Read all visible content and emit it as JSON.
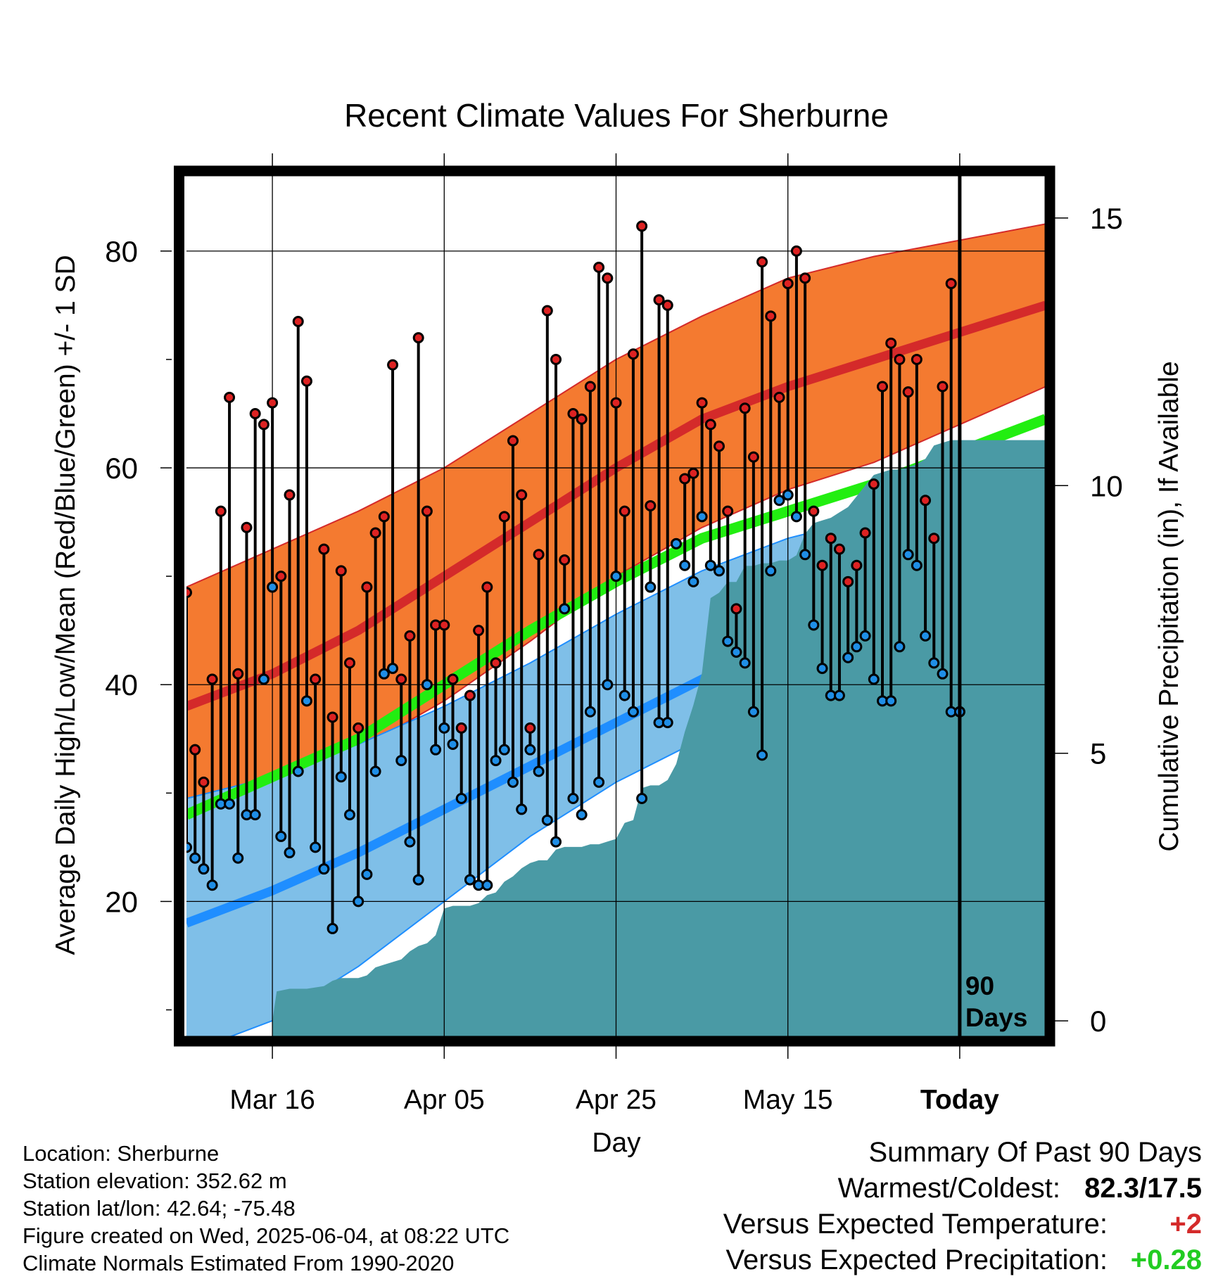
{
  "chart_data": {
    "type": "line",
    "title": "Recent Climate Values For Sherburne",
    "xlabel": "Day",
    "ylabel": "Average Daily High/Low/Mean (Red/Blue/Green) +/- 1 SD",
    "y2label": "Cumulative Precipitation (in), If Available",
    "xlim": [
      -10,
      90
    ],
    "ylim": [
      7.5,
      87
    ],
    "y2lim": [
      -0.3,
      15.8
    ],
    "grid": true,
    "x_ticks": [
      {
        "x": 0,
        "label": "Mar 16"
      },
      {
        "x": 20,
        "label": "Apr 05"
      },
      {
        "x": 40,
        "label": "Apr 25"
      },
      {
        "x": 60,
        "label": "May 15"
      },
      {
        "x": 80,
        "label": "Today"
      }
    ],
    "y_ticks": [
      20,
      40,
      60,
      80
    ],
    "y2_ticks": [
      0,
      5,
      10,
      15
    ],
    "today_marker": {
      "x": 80,
      "label_line1": "90",
      "label_line2": "Days"
    },
    "normals": {
      "x": [
        -10,
        0,
        10,
        20,
        30,
        40,
        50,
        60,
        70,
        80,
        90
      ],
      "high_mean": [
        38,
        41,
        45,
        50,
        55,
        60,
        64.5,
        67.5,
        70,
        72.5,
        75
      ],
      "high_upper": [
        49,
        52.5,
        56,
        60,
        65,
        70,
        74,
        77.5,
        79.5,
        81,
        82.5
      ],
      "high_lower": [
        29.5,
        31,
        34,
        38.5,
        44,
        50,
        54.5,
        58,
        60.5,
        64,
        67.5
      ],
      "mean": [
        28,
        31.5,
        35,
        40,
        45,
        49.5,
        53.5,
        56,
        58.5,
        61.5,
        64.5
      ],
      "low_mean": [
        18,
        21,
        24.5,
        28.5,
        32.5,
        36.5,
        40.5,
        44,
        47,
        50,
        53.5
      ],
      "low_upper": [
        29.5,
        31.5,
        34.5,
        38,
        42,
        46.5,
        50.5,
        53.5,
        55.5,
        58,
        60
      ],
      "low_lower": [
        6,
        9,
        14,
        20,
        26,
        31,
        35,
        37.5,
        40.5,
        44,
        47
      ]
    },
    "colors": {
      "high_band": "#f47a30",
      "high_line": "#d42a2a",
      "mean_line": "#22ee11",
      "low_band": "#7fbfe8",
      "low_line": "#1f8eff",
      "precip": "#4a9aa5",
      "high_point": "#dd2222",
      "low_point": "#1f8ee6"
    },
    "series": [
      {
        "name": "Daily High",
        "x": [
          -10,
          -9,
          -8,
          -7,
          -6,
          -5,
          -4,
          -3,
          -2,
          -1,
          0,
          1,
          2,
          3,
          4,
          5,
          6,
          7,
          8,
          9,
          10,
          11,
          12,
          13,
          14,
          15,
          16,
          17,
          18,
          19,
          20,
          21,
          22,
          23,
          24,
          25,
          26,
          27,
          28,
          29,
          30,
          31,
          32,
          33,
          34,
          35,
          36,
          37,
          38,
          39,
          40,
          41,
          42,
          43,
          44,
          45,
          46,
          47,
          48,
          49,
          50,
          51,
          52,
          53,
          54,
          55,
          56,
          57,
          58,
          59,
          60,
          61,
          62,
          63,
          64,
          65,
          66,
          67,
          68,
          69,
          70,
          71,
          72,
          73,
          74,
          75,
          76,
          77,
          78,
          79,
          80
        ],
        "values": [
          48.5,
          34,
          31,
          40.5,
          56,
          66.5,
          41,
          54.5,
          65,
          64,
          66,
          50,
          57.5,
          73.5,
          68,
          40.5,
          52.5,
          37,
          50.5,
          42,
          36,
          49,
          54,
          55.5,
          69.5,
          40.5,
          44.5,
          72,
          56,
          45.5,
          45.5,
          40.5,
          36,
          39,
          45,
          49,
          42,
          55.5,
          62.5,
          57.5,
          36,
          52,
          74.5,
          70,
          51.5,
          65,
          64.5,
          67.5,
          78.5,
          77.5,
          66,
          56,
          70.5,
          82.3,
          56.5,
          75.5,
          75,
          53,
          59,
          59.5,
          66,
          64,
          62,
          56,
          47,
          65.5,
          61,
          79,
          74,
          66.5,
          77,
          80,
          77.5,
          56,
          51,
          53.5,
          52.5,
          49.5,
          51,
          54,
          58.5,
          67.5,
          71.5,
          70,
          67,
          70,
          57,
          53.5,
          67.5,
          77,
          37.5
        ]
      },
      {
        "name": "Daily Low",
        "x": [
          -10,
          -9,
          -8,
          -7,
          -6,
          -5,
          -4,
          -3,
          -2,
          -1,
          0,
          1,
          2,
          3,
          4,
          5,
          6,
          7,
          8,
          9,
          10,
          11,
          12,
          13,
          14,
          15,
          16,
          17,
          18,
          19,
          20,
          21,
          22,
          23,
          24,
          25,
          26,
          27,
          28,
          29,
          30,
          31,
          32,
          33,
          34,
          35,
          36,
          37,
          38,
          39,
          40,
          41,
          42,
          43,
          44,
          45,
          46,
          47,
          48,
          49,
          50,
          51,
          52,
          53,
          54,
          55,
          56,
          57,
          58,
          59,
          60,
          61,
          62,
          63,
          64,
          65,
          66,
          67,
          68,
          69,
          70,
          71,
          72,
          73,
          74,
          75,
          76,
          77,
          78,
          79,
          80
        ],
        "values": [
          25,
          24,
          23,
          21.5,
          29,
          29,
          24,
          28,
          28,
          40.5,
          49,
          26,
          24.5,
          32,
          38.5,
          25,
          23,
          17.5,
          31.5,
          28,
          20,
          22.5,
          32,
          41,
          41.5,
          33,
          25.5,
          22,
          40,
          34,
          36,
          34.5,
          29.5,
          22,
          21.5,
          21.5,
          33,
          34,
          31,
          28.5,
          34,
          32,
          27.5,
          25.5,
          47,
          29.5,
          28,
          37.5,
          31,
          40,
          50,
          39,
          37.5,
          29.5,
          49,
          36.5,
          36.5,
          53,
          51,
          49.5,
          55.5,
          51,
          50.5,
          44,
          43,
          42,
          37.5,
          33.5,
          50.5,
          57,
          57.5,
          55.5,
          52,
          45.5,
          41.5,
          39,
          39,
          42.5,
          43.5,
          44.5,
          40.5,
          38.5,
          38.5,
          43.5,
          52,
          51,
          44.5,
          42,
          41,
          37.5,
          37.5
        ]
      },
      {
        "name": "Cumulative Precipitation",
        "x": [
          0,
          0.5,
          2,
          4,
          6,
          7,
          8,
          10,
          11,
          12,
          13,
          14,
          15,
          16,
          17,
          18,
          19,
          20,
          21,
          23,
          24,
          25,
          26,
          27,
          28,
          29,
          30,
          31,
          32,
          33,
          34,
          36,
          37,
          38,
          39,
          40,
          41,
          42,
          43,
          44,
          45,
          46,
          47,
          48,
          49,
          50,
          51,
          52,
          53,
          54,
          55,
          56,
          57,
          58,
          59,
          60,
          61,
          62,
          63,
          64,
          65,
          66,
          67,
          68,
          69,
          70,
          71,
          72,
          73,
          74,
          75,
          76,
          77,
          78,
          79,
          80,
          81,
          82,
          83,
          84,
          85,
          86,
          87,
          88,
          89,
          90
        ],
        "values": [
          0.0,
          0.55,
          0.6,
          0.6,
          0.65,
          0.75,
          0.8,
          0.8,
          0.85,
          1.0,
          1.05,
          1.1,
          1.15,
          1.3,
          1.4,
          1.45,
          1.6,
          2.1,
          2.15,
          2.15,
          2.2,
          2.35,
          2.4,
          2.6,
          2.7,
          2.85,
          2.95,
          3.0,
          3.0,
          3.2,
          3.25,
          3.25,
          3.3,
          3.3,
          3.35,
          3.4,
          3.7,
          3.75,
          4.35,
          4.4,
          4.4,
          4.5,
          4.8,
          5.4,
          5.9,
          6.5,
          7.9,
          8.0,
          8.2,
          8.2,
          8.5,
          8.5,
          8.55,
          8.55,
          8.6,
          8.6,
          8.7,
          9.1,
          9.3,
          9.35,
          9.4,
          9.5,
          9.6,
          9.8,
          10.0,
          10.2,
          10.25,
          10.3,
          10.3,
          10.35,
          10.4,
          10.5,
          10.75,
          10.8,
          10.85,
          10.85,
          10.85,
          10.85,
          10.85,
          10.85,
          10.85,
          10.85,
          10.85,
          10.85,
          10.85,
          10.85
        ]
      }
    ]
  },
  "info": {
    "location": "Location: Sherburne",
    "elevation": "Station elevation: 352.62 m",
    "latlon": "Station lat/lon: 42.64; -75.48",
    "created": "Figure created on Wed, 2025-06-04, at 08:22 UTC",
    "normals": "Climate Normals Estimated From 1990-2020"
  },
  "summary": {
    "title": "Summary Of Past 90 Days",
    "warm_cold_label": "Warmest/Coldest:",
    "warm_cold_value": "82.3/17.5",
    "temp_label": "Versus Expected Temperature:",
    "temp_value": "+2",
    "precip_label": "Versus Expected Precipitation:",
    "precip_value": "+0.28"
  }
}
